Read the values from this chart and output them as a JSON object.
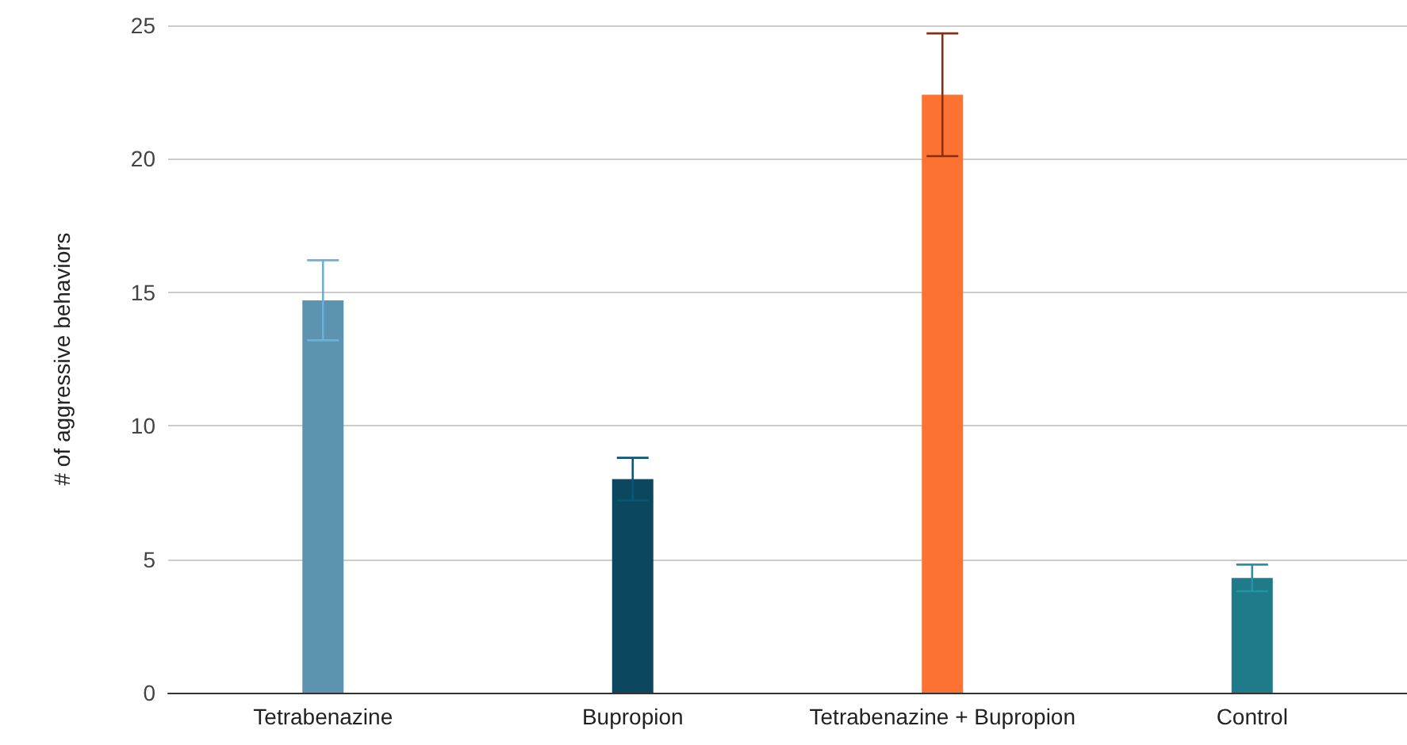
{
  "chart_data": {
    "type": "bar",
    "ylabel": "# of aggressive behaviors",
    "categories": [
      "Tetrabenazine",
      "Bupropion",
      "Tetrabenazine + Bupropion",
      "Control"
    ],
    "values": [
      14.7,
      8.0,
      22.4,
      4.3
    ],
    "errors": [
      1.5,
      0.8,
      2.3,
      0.5
    ],
    "colors": [
      "#5b93b0",
      "#0b4860",
      "#fb7232",
      "#1f7a8a"
    ],
    "ylim": [
      0,
      25
    ],
    "yticks": [
      0,
      5,
      10,
      15,
      20,
      25
    ],
    "grid": "y"
  }
}
